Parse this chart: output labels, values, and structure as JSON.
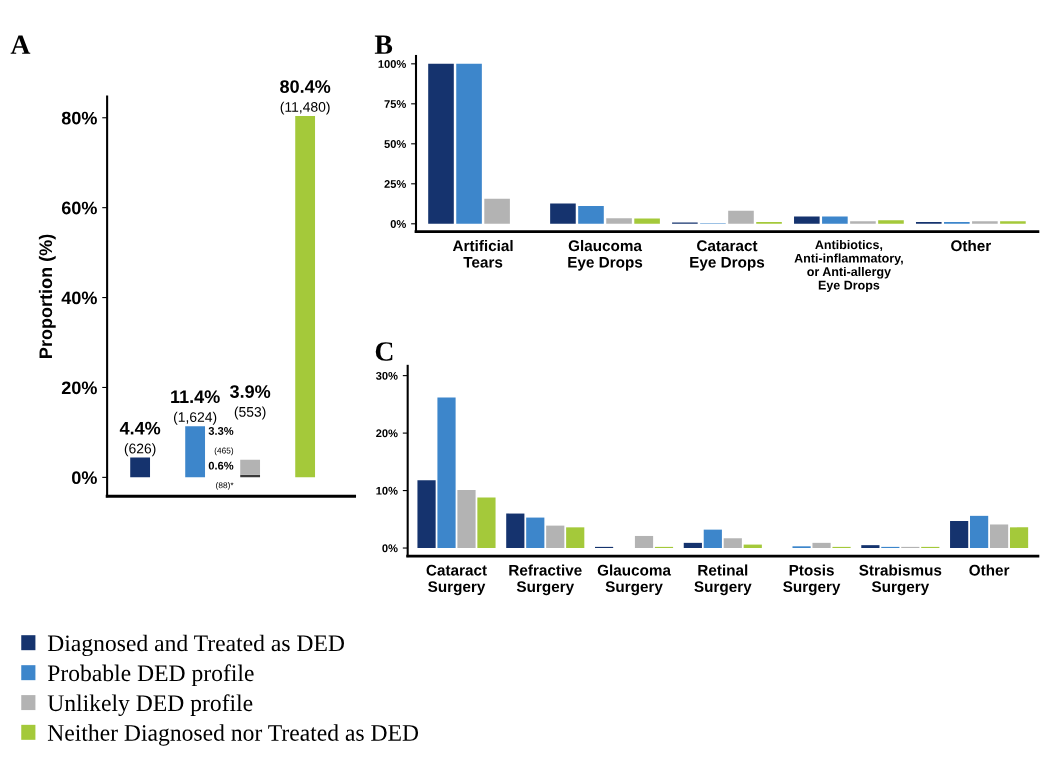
{
  "chart_data": [
    {
      "type": "bar",
      "title": "A",
      "ylabel": "Proportion (%)",
      "categories": [
        null,
        null,
        null,
        null
      ],
      "stacked": true,
      "tick_labels": "y",
      "ylim": [
        -4.2,
        84.7
      ],
      "yticks": [
        {
          "value": 0,
          "label": "0%"
        },
        {
          "value": 20,
          "label": "20%"
        },
        {
          "value": 40,
          "label": "40%"
        },
        {
          "value": 60,
          "label": "60%"
        },
        {
          "value": 80,
          "label": "80%"
        }
      ],
      "series": [
        {
          "colors": [
            "#15336e",
            "#3d86cb",
            "#3a3a3a",
            "#a4c93a"
          ],
          "values": [
            4.4,
            11.4,
            0.6,
            80.4
          ],
          "value_labels": [
            "4.4%\n(626)",
            "11.4%\n(1,624)",
            null,
            "80.4%\n(11,480)"
          ]
        },
        {
          "color": "#b3b3b3",
          "values": [
            null,
            null,
            3.3,
            null
          ]
        }
      ],
      "annotations": [
        "0.6%\n(88)*",
        "3.3%\n(465)"
      ],
      "totals": [
        null,
        null,
        "3.9%\n(553)",
        null
      ]
    },
    {
      "type": "bar",
      "title": "B",
      "categories": [
        "Artificial\nTears",
        "Glaucoma\nEye Drops",
        "Cataract\nEye Drops",
        "Antibiotics,\nAnti-inflammatory,\nor Anti-allergy\nEye Drops",
        "Other"
      ],
      "ylim": [
        -4.9,
        104.9
      ],
      "yticks": [
        {
          "value": 0,
          "label": "0%"
        },
        {
          "value": 25,
          "label": "25%"
        },
        {
          "value": 50,
          "label": "50%"
        },
        {
          "value": 75,
          "label": "75%"
        },
        {
          "value": 100,
          "label": "100%"
        }
      ],
      "series": [
        {
          "color": "#15336e",
          "values": [
            100,
            12.7,
            0.8,
            4.6,
            1.1
          ]
        },
        {
          "color": "#3d86cb",
          "values": [
            100,
            11.1,
            0.3,
            4.6,
            1.1
          ]
        },
        {
          "color": "#b3b3b3",
          "values": [
            15.7,
            3.5,
            8.1,
            1.6,
            1.6
          ]
        },
        {
          "color": "#a4c93a",
          "values": [
            0,
            3.3,
            1.1,
            2.2,
            1.6
          ]
        }
      ]
    },
    {
      "type": "bar",
      "title": "C",
      "categories": [
        "Cataract\nSurgery",
        "Refractive\nSurgery",
        "Glaucoma\nSurgery",
        "Retinal\nSurgery",
        "Ptosis\nSurgery",
        "Strabismus\nSurgery",
        "Other"
      ],
      "ylim": [
        -1.4,
        31.7
      ],
      "yticks": [
        {
          "value": 0,
          "label": "0%"
        },
        {
          "value": 10,
          "label": "10%"
        },
        {
          "value": 20,
          "label": "20%"
        },
        {
          "value": 30,
          "label": "30%"
        }
      ],
      "legend": "bottom left",
      "series": [
        {
          "name": "Diagnosed and Treated as DED",
          "color": "#15336e",
          "values": [
            11.8,
            6.0,
            0.2,
            0.9,
            0,
            0.5,
            4.7
          ]
        },
        {
          "name": "Probable DED profile",
          "color": "#3d86cb",
          "values": [
            26.2,
            5.3,
            0,
            3.2,
            0.3,
            0.2,
            5.6
          ]
        },
        {
          "name": "Unlikely DED profile",
          "color": "#b3b3b3",
          "values": [
            10.1,
            3.9,
            2.1,
            1.7,
            0.9,
            0.2,
            4.1
          ]
        },
        {
          "name": "Neither Diagnosed nor Treated as DED",
          "color": "#a4c93a",
          "values": [
            8.8,
            3.6,
            0.2,
            0.6,
            0.2,
            0.2,
            3.6
          ]
        }
      ]
    }
  ]
}
